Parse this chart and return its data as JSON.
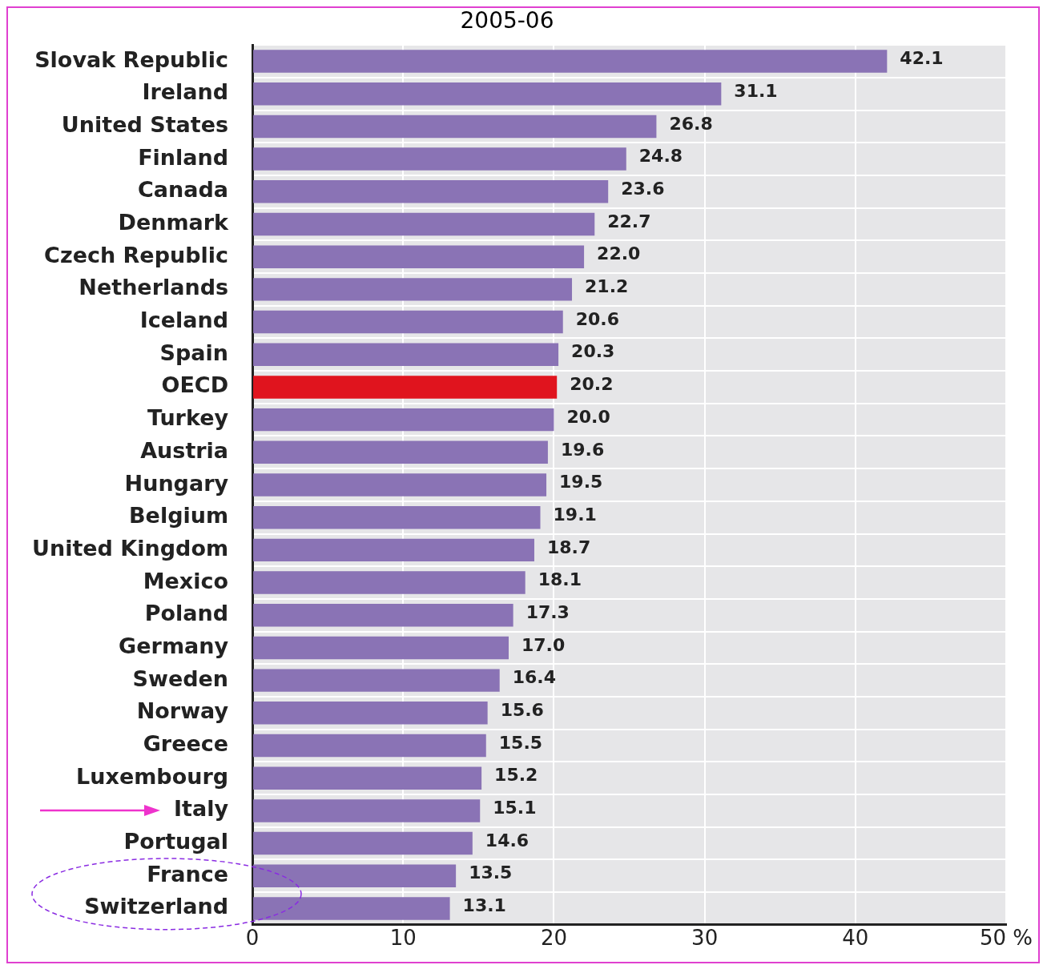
{
  "chart_data": {
    "type": "bar",
    "orientation": "horizontal",
    "title": "2005-06",
    "categories": [
      "Slovak Republic",
      "Ireland",
      "United States",
      "Finland",
      "Canada",
      "Denmark",
      "Czech Republic",
      "Netherlands",
      "Iceland",
      "Spain",
      "OECD",
      "Turkey",
      "Austria",
      "Hungary",
      "Belgium",
      "United Kingdom",
      "Mexico",
      "Poland",
      "Germany",
      "Sweden",
      "Norway",
      "Greece",
      "Luxembourg",
      "Italy",
      "Portugal",
      "France",
      "Switzerland"
    ],
    "values": [
      42.1,
      31.1,
      26.8,
      24.8,
      23.6,
      22.7,
      22.0,
      21.2,
      20.6,
      20.3,
      20.2,
      20.0,
      19.6,
      19.5,
      19.1,
      18.7,
      18.1,
      17.3,
      17.0,
      16.4,
      15.6,
      15.5,
      15.2,
      15.1,
      14.6,
      13.5,
      13.1
    ],
    "value_labels": [
      "42.1",
      "31.1",
      "26.8",
      "24.8",
      "23.6",
      "22.7",
      "22.0",
      "21.2",
      "20.6",
      "20.3",
      "20.2",
      "20.0",
      "19.6",
      "19.5",
      "19.1",
      "18.7",
      "18.1",
      "17.3",
      "17.0",
      "16.4",
      "15.6",
      "15.5",
      "15.2",
      "15.1",
      "14.6",
      "13.5",
      "13.1"
    ],
    "colors": [
      "#8a73b5",
      "#8a73b5",
      "#8a73b5",
      "#8a73b5",
      "#8a73b5",
      "#8a73b5",
      "#8a73b5",
      "#8a73b5",
      "#8a73b5",
      "#8a73b5",
      "#e0141e",
      "#8a73b5",
      "#8a73b5",
      "#8a73b5",
      "#8a73b5",
      "#8a73b5",
      "#8a73b5",
      "#8a73b5",
      "#8a73b5",
      "#8a73b5",
      "#8a73b5",
      "#8a73b5",
      "#8a73b5",
      "#8a73b5",
      "#8a73b5",
      "#8a73b5",
      "#8a73b5"
    ],
    "xlim": [
      0,
      50
    ],
    "xticks": [
      0,
      10,
      20,
      30,
      40,
      {
        "value": 50,
        "label": "50 %"
      }
    ],
    "grid": true,
    "legend": false
  }
}
